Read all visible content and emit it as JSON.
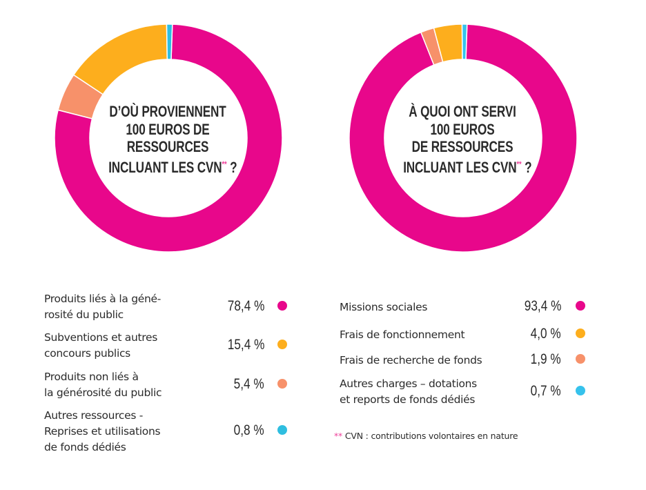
{
  "colors": {
    "pink": "#E8078B",
    "orange": "#FDAE1D",
    "salmon": "#F7916A",
    "cyan": "#36C2EC",
    "asterisk": "#EE3F9A"
  },
  "chart_data": [
    {
      "type": "pie",
      "variant": "donut",
      "title_lines": [
        "D’OÙ PROVIENNENT",
        "100 EUROS DE",
        "RESSOURCES",
        "INCLUANT LES CVN"
      ],
      "title_suffix_mark": "**",
      "title_suffix": " ?",
      "unit": "%",
      "start": "top",
      "direction": "clockwise",
      "slices": [
        {
          "label": "Produits liés à la générosité du public",
          "label_lines": [
            "Produits liés à la géné-",
            "rosité du public"
          ],
          "value": 78.4,
          "display": "78,4 %",
          "color": "#E8078B"
        },
        {
          "label": "Produits non liés à la générosité du public",
          "label_lines": [
            "Produits non liés à",
            "la générosité du public"
          ],
          "value": 5.4,
          "display": "5,4 %",
          "color": "#F7916A"
        },
        {
          "label": "Subventions et autres concours publics",
          "label_lines": [
            "Subventions et autres",
            "concours publics"
          ],
          "value": 15.4,
          "display": "15,4 %",
          "color": "#FDAE1D"
        },
        {
          "label": "Autres ressources - Reprises et utilisations de fonds dédiés",
          "label_lines": [
            "Autres ressources -",
            "Reprises et utilisations",
            "de fonds dédiés"
          ],
          "value": 0.8,
          "display": "0,8 %",
          "color": "#2FBEE0"
        }
      ],
      "legend_order": [
        0,
        2,
        1,
        3
      ]
    },
    {
      "type": "pie",
      "variant": "donut",
      "title_lines": [
        "À QUOI ONT SERVI",
        "100 EUROS",
        "DE RESSOURCES",
        "INCLUANT LES CVN"
      ],
      "title_suffix_mark": "**",
      "title_suffix": " ?",
      "unit": "%",
      "start": "top",
      "direction": "clockwise",
      "slices": [
        {
          "label": "Missions sociales",
          "label_lines": [
            "Missions sociales"
          ],
          "value": 93.4,
          "display": "93,4 %",
          "color": "#E8078B"
        },
        {
          "label": "Frais de recherche de fonds",
          "label_lines": [
            "Frais de recherche de fonds"
          ],
          "value": 1.9,
          "display": "1,9 %",
          "color": "#F7916A"
        },
        {
          "label": "Frais de fonctionnement",
          "label_lines": [
            "Frais de fonctionnement"
          ],
          "value": 4.0,
          "display": "4,0 %",
          "color": "#FDAE1D"
        },
        {
          "label": "Autres charges – dotations et reports de fonds dédiés",
          "label_lines": [
            "Autres charges – dotations",
            "et reports de fonds dédiés"
          ],
          "value": 0.7,
          "display": "0,7 %",
          "color": "#36C2EC"
        }
      ],
      "legend_order": [
        0,
        2,
        1,
        3
      ]
    }
  ],
  "footnote": {
    "mark": "**",
    "text": " CVN : contributions volontaires en nature"
  }
}
